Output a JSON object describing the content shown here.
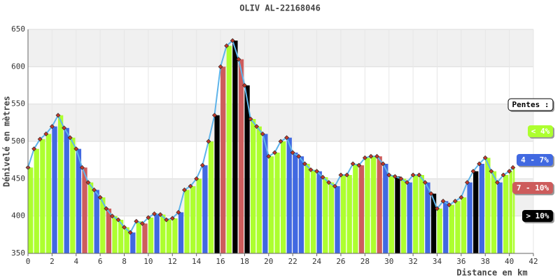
{
  "chart_data": {
    "type": "elevation-profile",
    "title": "OLIV AL-22168046",
    "x_label": "Distance en km",
    "y_label": "Dénivelé en mètres",
    "xlim": [
      0,
      42
    ],
    "xticks": [
      0,
      2,
      4,
      6,
      8,
      10,
      12,
      14,
      16,
      18,
      20,
      22,
      24,
      26,
      28,
      30,
      32,
      34,
      36,
      38,
      40,
      42
    ],
    "ylim": [
      350,
      650
    ],
    "yticks": [
      350,
      400,
      450,
      500,
      550,
      600,
      650
    ],
    "grid": true,
    "line_color": "#5fb4ea",
    "marker_color": "#c0392b",
    "x": [
      0,
      0.5,
      1,
      1.5,
      2,
      2.5,
      3,
      3.5,
      4,
      4.5,
      5,
      5.5,
      6,
      6.5,
      7,
      7.5,
      8,
      8.5,
      9,
      9.5,
      10,
      10.5,
      11,
      11.5,
      12,
      12.5,
      13,
      13.5,
      14,
      14.5,
      15,
      15.5,
      16,
      16.5,
      17,
      17.5,
      18,
      18.5,
      19,
      19.5,
      20,
      20.5,
      21,
      21.5,
      22,
      22.5,
      23,
      23.5,
      24,
      24.5,
      25,
      25.5,
      26,
      26.5,
      27,
      27.5,
      28,
      28.5,
      29,
      29.5,
      30,
      30.5,
      31,
      31.5,
      32,
      32.5,
      33,
      33.5,
      34,
      34.5,
      35,
      35.5,
      36,
      36.5,
      37,
      37.5,
      38,
      38.5,
      39,
      39.5,
      40,
      40.3
    ],
    "values": [
      465,
      490,
      503,
      510,
      520,
      535,
      518,
      505,
      490,
      465,
      445,
      435,
      425,
      410,
      400,
      395,
      385,
      378,
      393,
      390,
      398,
      403,
      402,
      395,
      397,
      405,
      435,
      440,
      450,
      468,
      500,
      535,
      600,
      628,
      635,
      610,
      575,
      530,
      520,
      510,
      480,
      485,
      500,
      505,
      485,
      480,
      470,
      462,
      460,
      452,
      445,
      440,
      455,
      455,
      470,
      468,
      478,
      480,
      480,
      470,
      455,
      453,
      450,
      445,
      455,
      455,
      445,
      430,
      410,
      420,
      415,
      420,
      425,
      445,
      460,
      470,
      478,
      460,
      445,
      455,
      460,
      465
    ],
    "slope_class": [
      0,
      0,
      0,
      0,
      1,
      0,
      1,
      0,
      1,
      2,
      0,
      1,
      0,
      2,
      0,
      0,
      0,
      1,
      0,
      2,
      0,
      1,
      0,
      0,
      0,
      1,
      0,
      0,
      0,
      1,
      0,
      3,
      2,
      0,
      3,
      2,
      3,
      0,
      0,
      1,
      0,
      0,
      0,
      1,
      1,
      1,
      0,
      0,
      1,
      0,
      0,
      1,
      0,
      0,
      0,
      2,
      0,
      0,
      2,
      1,
      0,
      3,
      0,
      1,
      0,
      0,
      1,
      3,
      0,
      1,
      0,
      0,
      0,
      1,
      3,
      1,
      0,
      0,
      1,
      0,
      0,
      0
    ],
    "legend": {
      "title": "Pentes :",
      "items": [
        {
          "label": "< 4%",
          "color": "#adff2f"
        },
        {
          "label": "4 - 7%",
          "color": "#4169e1"
        },
        {
          "label": "7 - 10%",
          "color": "#cd5c5c"
        },
        {
          "label": "> 10%",
          "color": "#000000"
        }
      ]
    }
  }
}
